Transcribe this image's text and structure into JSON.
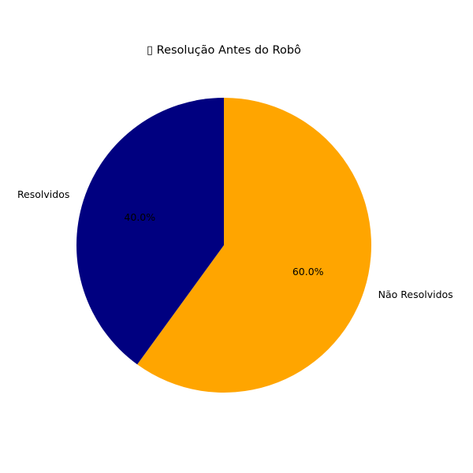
{
  "chart_data": {
    "type": "pie",
    "title": "▯ Resolução Antes do Robô",
    "slices": [
      {
        "label": "Não Resolvidos",
        "value": 60.0,
        "pct_label": "60.0%",
        "color": "#FFA500"
      },
      {
        "label": "Resolvidos",
        "value": 40.0,
        "pct_label": "40.0%",
        "color": "#000080"
      }
    ],
    "start_angle_deg": 90,
    "direction": "clockwise"
  }
}
